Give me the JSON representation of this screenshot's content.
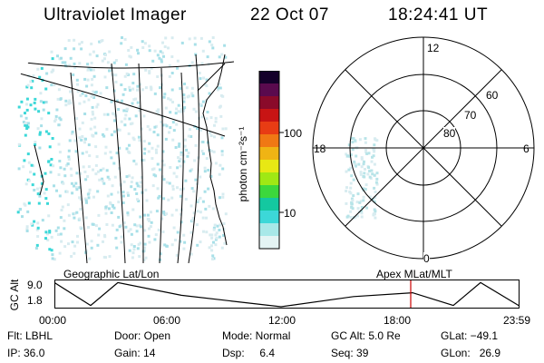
{
  "header": {
    "instrument": "Ultraviolet Imager",
    "date": "22 Oct 07",
    "time": "18:24:41 UT"
  },
  "colorbar": {
    "unit_label": "photon cm⁻²s⁻¹",
    "ticks": [
      "100",
      "10"
    ],
    "colors": [
      "#14002a",
      "#5a0a4e",
      "#8a0a2a",
      "#c81414",
      "#e83c14",
      "#f07814",
      "#f0b414",
      "#e8e814",
      "#a0e814",
      "#3cd83c",
      "#14c8a0",
      "#3cd8d8",
      "#a8e8e8",
      "#e4f4f4"
    ]
  },
  "polar": {
    "mlt_labels": [
      "12",
      "6",
      "18",
      "0"
    ],
    "mlat_labels": [
      "60",
      "70",
      "80"
    ]
  },
  "timeline": {
    "ylabel": "GC Alt",
    "yticks": [
      "9.0",
      "1.8"
    ],
    "left_label": "Geographic Lat/Lon",
    "right_label": "Apex MLat/MLT",
    "xticks": [
      "00:00",
      "06:00",
      "12:00",
      "18:00",
      "23:59"
    ],
    "marker_hour": 18.41,
    "marker_color": "#cc0000"
  },
  "status": {
    "flt": "Flt: LBHL",
    "ip": "IP: 36.0",
    "door": "Door: Open",
    "gain": "Gain: 14",
    "mode": "Mode: Normal",
    "dsp": "Dsp:     6.4",
    "gcalt": "GC Alt: 5.0 Re",
    "seq": "Seq: 39",
    "glat": "GLat: −49.1",
    "glon": "GLon:   26.9"
  }
}
